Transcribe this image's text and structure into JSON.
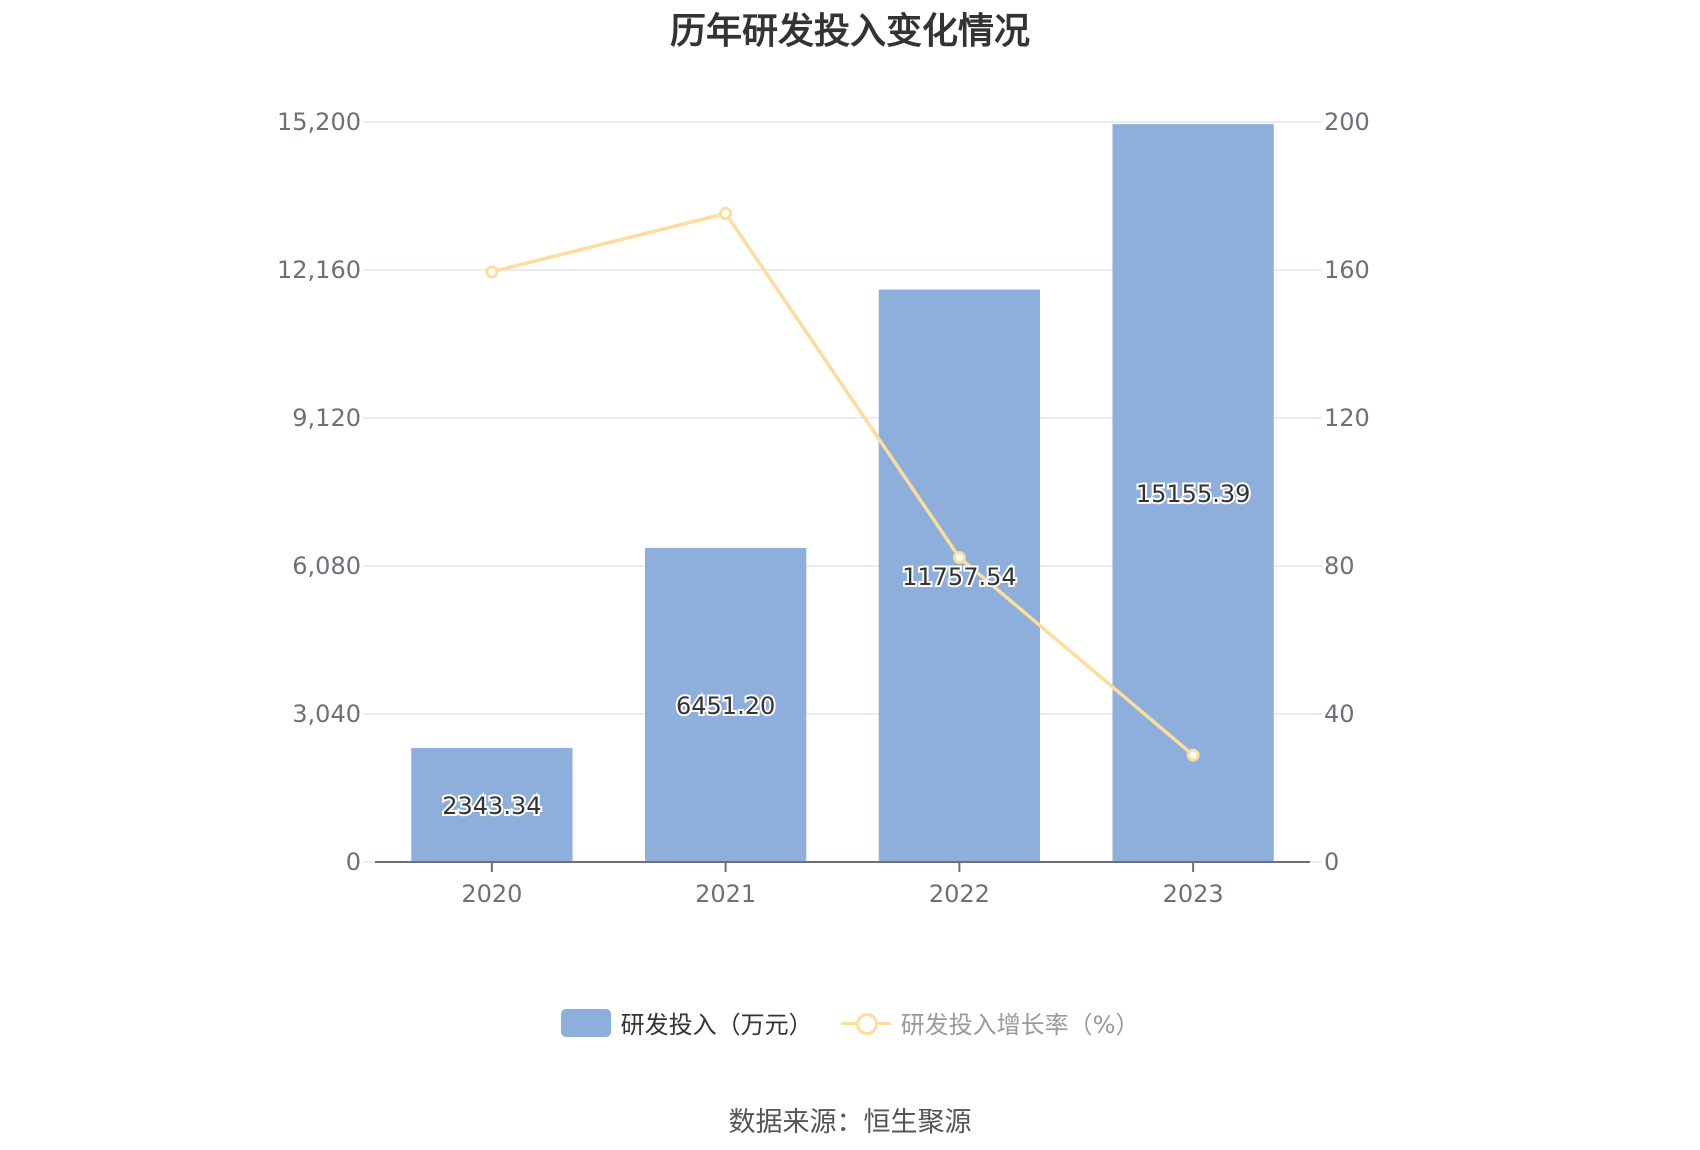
{
  "chart_data": {
    "type": "bar",
    "title": "历年研发投入变化情况",
    "categories": [
      "2020",
      "2021",
      "2022",
      "2023"
    ],
    "series": [
      {
        "name": "研发投入（万元）",
        "type": "bar",
        "axis": "left",
        "values": [
          2343.34,
          6451.2,
          11757.54,
          15155.39
        ],
        "labels": [
          "2343.34",
          "6451.20",
          "11757.54",
          "15155.39"
        ],
        "color": "#8eaedb"
      },
      {
        "name": "研发投入增长率（%）",
        "type": "line",
        "axis": "right",
        "values": [
          159.5,
          175.3,
          82.3,
          28.9
        ],
        "color": "#fddd9c"
      }
    ],
    "y_left": {
      "min": 0,
      "max": 15200,
      "ticks": [
        "0",
        "3,040",
        "6,080",
        "9,120",
        "12,160",
        "15,200"
      ]
    },
    "y_right": {
      "min": 0,
      "max": 200,
      "ticks": [
        "0",
        "40",
        "80",
        "120",
        "160",
        "200"
      ]
    },
    "grid": true,
    "legend_position": "bottom"
  },
  "source_text": "数据来源：恒生聚源",
  "colors": {
    "grid": "#e0e6f1",
    "axis": "#6e7079",
    "text": "#333333"
  }
}
